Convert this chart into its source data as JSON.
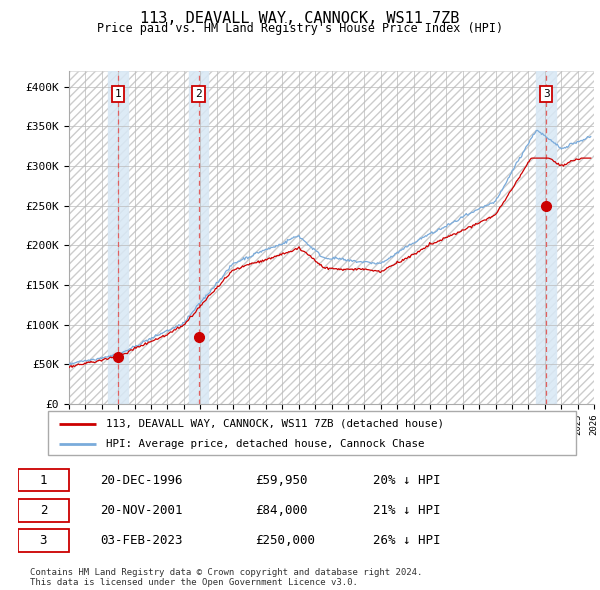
{
  "title": "113, DEAVALL WAY, CANNOCK, WS11 7ZB",
  "subtitle": "Price paid vs. HM Land Registry's House Price Index (HPI)",
  "x_start_year": 1994,
  "x_end_year": 2026,
  "y_min": 0,
  "y_max": 420000,
  "y_ticks": [
    0,
    50000,
    100000,
    150000,
    200000,
    250000,
    300000,
    350000,
    400000
  ],
  "y_tick_labels": [
    "£0",
    "£50K",
    "£100K",
    "£150K",
    "£200K",
    "£250K",
    "£300K",
    "£350K",
    "£400K"
  ],
  "sales": [
    {
      "date": 1996.97,
      "price": 59950,
      "label": "1"
    },
    {
      "date": 2001.9,
      "price": 84000,
      "label": "2"
    },
    {
      "date": 2023.09,
      "price": 250000,
      "label": "3"
    }
  ],
  "sale_labels_bottom": [
    {
      "num": "1",
      "date_str": "20-DEC-1996",
      "price_str": "£59,950",
      "pct_str": "20% ↓ HPI"
    },
    {
      "num": "2",
      "date_str": "20-NOV-2001",
      "price_str": "£84,000",
      "pct_str": "21% ↓ HPI"
    },
    {
      "num": "3",
      "date_str": "03-FEB-2023",
      "price_str": "£250,000",
      "pct_str": "26% ↓ HPI"
    }
  ],
  "hpi_color": "#7aabdb",
  "sale_color": "#cc0000",
  "vline_color": "#e06060",
  "shade_color": "#d8e8f5",
  "footnote": "Contains HM Land Registry data © Crown copyright and database right 2024.\nThis data is licensed under the Open Government Licence v3.0.",
  "legend_entries": [
    "113, DEAVALL WAY, CANNOCK, WS11 7ZB (detached house)",
    "HPI: Average price, detached house, Cannock Chase"
  ],
  "hpi_seed": 42,
  "sale_seed": 99
}
